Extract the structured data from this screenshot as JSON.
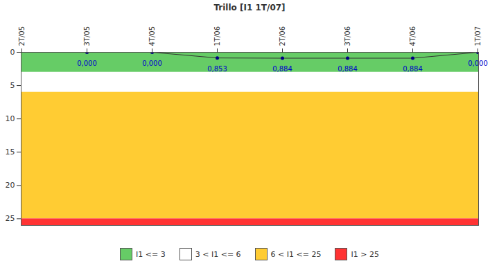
{
  "chart_data": {
    "type": "line",
    "title": "Trillo [I1 1T/07]",
    "categories": [
      "2T/05",
      "3T/05",
      "4T/05",
      "1T/06",
      "2T/06",
      "3T/06",
      "4T/06",
      "1T/07"
    ],
    "series": [
      {
        "color": "#000080",
        "values": [
          null,
          0,
          0,
          0.853,
          0.884,
          0.884,
          0.884,
          0
        ],
        "value_labels": [
          null,
          "0,000",
          "0,000",
          "0,853",
          "0,884",
          "0,884",
          "0,884",
          "0,000"
        ]
      }
    ],
    "ylim": [
      26,
      0
    ],
    "yticks": [
      0,
      5,
      10,
      15,
      20,
      25
    ],
    "bands": [
      {
        "from": 0,
        "to": 3,
        "color": "#66cc66",
        "label": "I1 <= 3"
      },
      {
        "from": 3,
        "to": 6,
        "color": "#ffffff",
        "label": "3 < I1 <= 6"
      },
      {
        "from": 6,
        "to": 25,
        "color": "#ffcc33",
        "label": "6 < I1 <= 25"
      },
      {
        "from": 25,
        "to": 26,
        "color": "#ff3333",
        "label": "I1 > 25"
      }
    ],
    "data_labels": true,
    "legend": "bottom"
  }
}
